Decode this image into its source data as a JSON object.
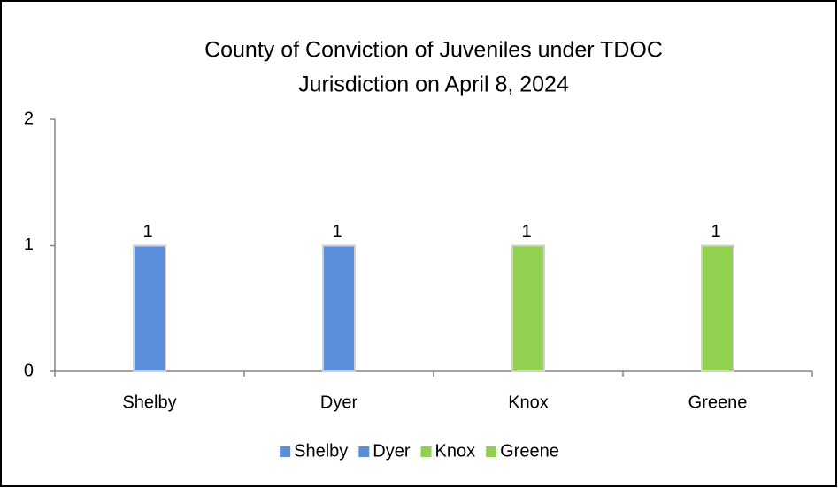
{
  "chart_data": {
    "type": "bar",
    "title": [
      "County of Conviction of Juveniles under TDOC",
      "Jurisdiction on April 8, 2024"
    ],
    "categories": [
      "Shelby",
      "Dyer",
      "Knox",
      "Greene"
    ],
    "values": [
      1,
      1,
      1,
      1
    ],
    "colors": [
      "#5b8fdc",
      "#5b8fdc",
      "#92d050",
      "#92d050"
    ],
    "ylim": [
      0,
      2
    ],
    "yticks": [
      0,
      1,
      2
    ],
    "grid": false,
    "data_labels": true,
    "legend": "bottom"
  }
}
